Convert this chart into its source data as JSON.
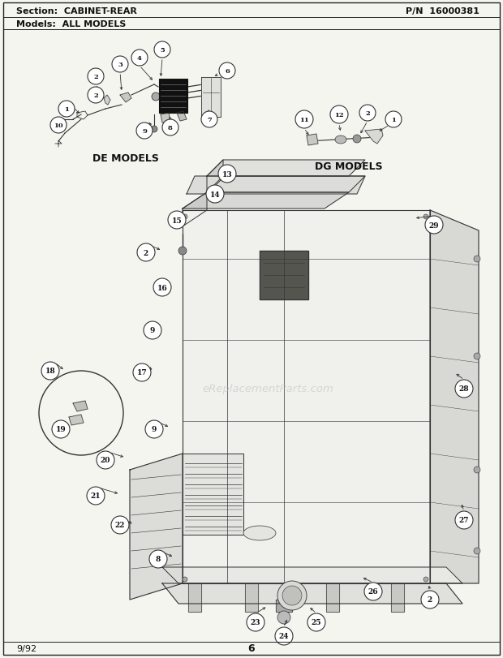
{
  "title_section": "Section:  CABINET-REAR",
  "title_pn": "P/N  16000381",
  "title_models": "Models:  ALL MODELS",
  "page_number": "6",
  "date": "9/92",
  "bg_color": "#f5f5f0",
  "border_color": "#222222",
  "text_color": "#111111",
  "de_models_label": "DE MODELS",
  "dg_models_label": "DG MODELS",
  "watermark": "eReplacementParts.com",
  "line_color": "#333333",
  "part_circle_color": "#ffffff",
  "part_circle_edge": "#333333"
}
